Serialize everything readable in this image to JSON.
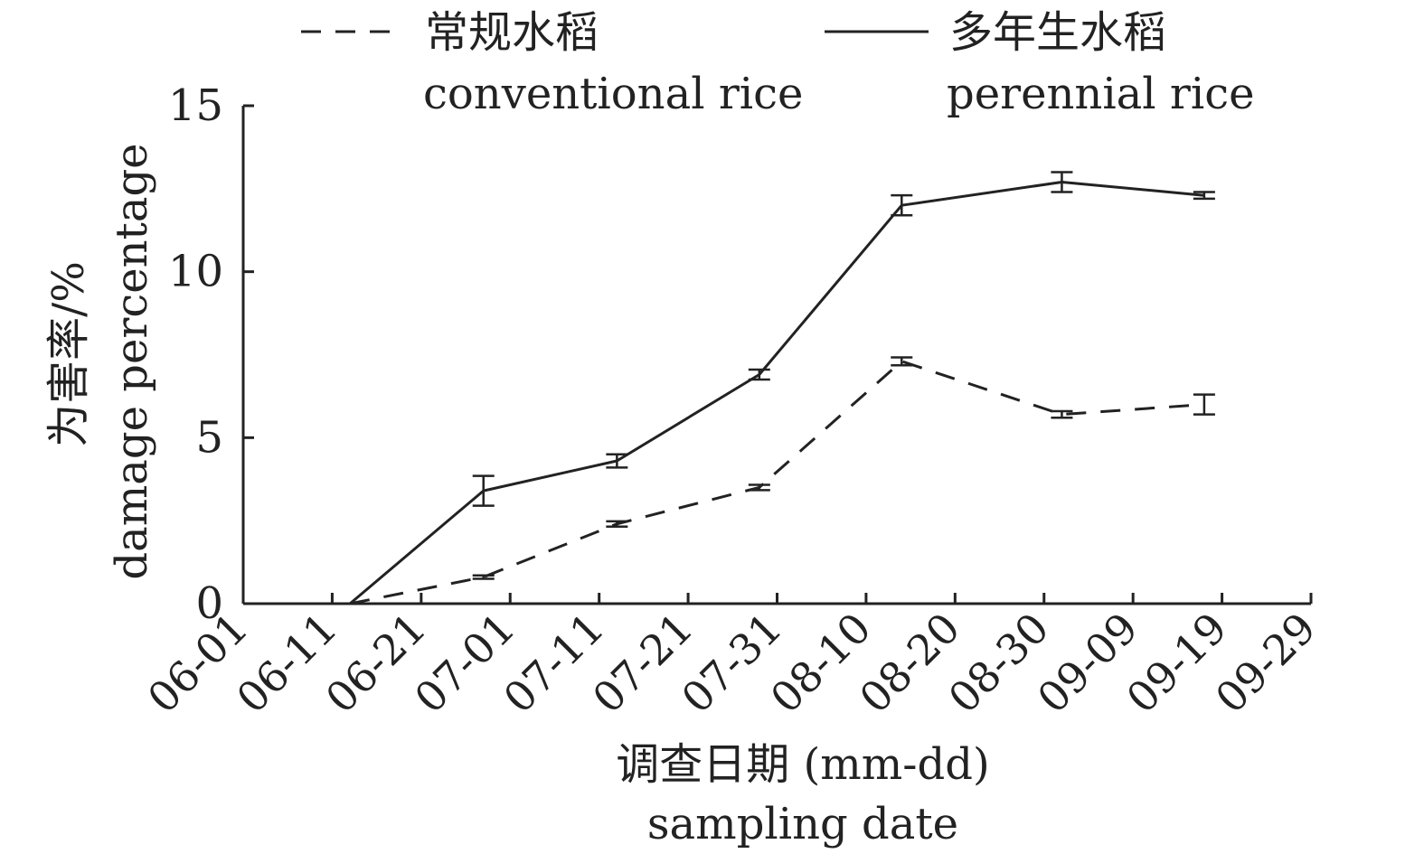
{
  "chart_data": {
    "type": "line",
    "title": "",
    "legend": [
      {
        "name_zh": "常规水稻",
        "name_en": "conventional rice",
        "style": "dashed"
      },
      {
        "name_zh": "多年生水稻",
        "name_en": "perennial rice",
        "style": "solid"
      }
    ],
    "xlabel_zh": "调查日期 (mm-dd)",
    "xlabel_en": "sampling date",
    "ylabel_zh": "为害率/%",
    "ylabel_en": "damage percentage",
    "x_ticks": [
      "06-01",
      "06-11",
      "06-21",
      "07-01",
      "07-11",
      "07-21",
      "07-31",
      "08-10",
      "08-20",
      "08-30",
      "09-09",
      "09-19",
      "09-29"
    ],
    "y_ticks": [
      0,
      5,
      10,
      15
    ],
    "ylim": [
      0,
      15
    ],
    "xlim_days": [
      0,
      120
    ],
    "series": [
      {
        "name": "conventional rice",
        "style": "dashed",
        "x_days": [
          12,
          27,
          42,
          58,
          74,
          92,
          108
        ],
        "values": [
          0,
          0.8,
          2.4,
          3.5,
          7.3,
          5.7,
          6.0
        ],
        "errors": [
          0,
          0.05,
          0.08,
          0.08,
          0.12,
          0.1,
          0.3
        ]
      },
      {
        "name": "perennial rice",
        "style": "solid",
        "x_days": [
          12,
          27,
          42,
          58,
          74,
          92,
          108
        ],
        "values": [
          0,
          3.4,
          4.3,
          6.9,
          12.0,
          12.7,
          12.3
        ],
        "errors": [
          0,
          0.45,
          0.2,
          0.15,
          0.3,
          0.3,
          0.1
        ]
      }
    ]
  }
}
